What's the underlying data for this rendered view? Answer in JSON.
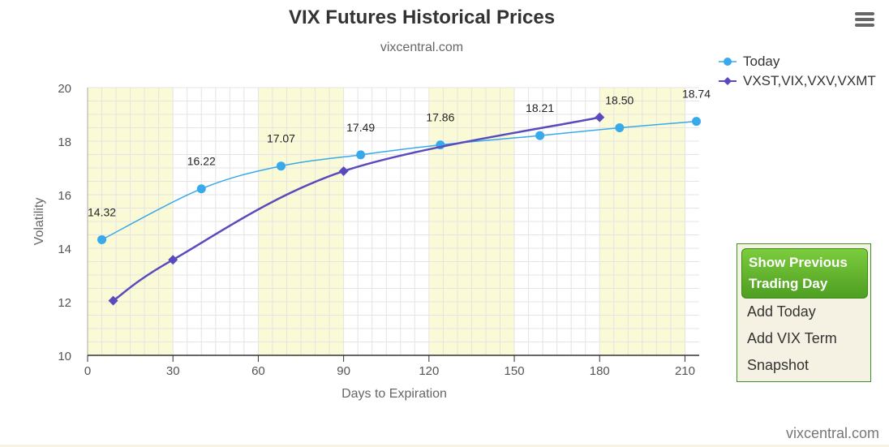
{
  "header": {
    "title": "VIX Futures Historical Prices",
    "subtitle": "vixcentral.com"
  },
  "icons": {
    "menu": "hamburger-menu-icon"
  },
  "colors": {
    "today": "#38a9eb",
    "term": "#5a4bbd",
    "band": "#fbfad6",
    "grid": "#e4e4e4",
    "button": "#5aab2a"
  },
  "chart_data": {
    "type": "line",
    "xlabel": "Days to Expiration",
    "ylabel": "Volatility",
    "xlim": [
      0,
      215
    ],
    "ylim": [
      10,
      20
    ],
    "xticks": [
      0,
      30,
      60,
      90,
      120,
      150,
      180,
      210
    ],
    "yticks": [
      10,
      12,
      14,
      16,
      18,
      20
    ],
    "xtick_labels": [
      "0",
      "30",
      "60",
      "90",
      "120",
      "150",
      "180",
      "210"
    ],
    "ytick_labels": [
      "10",
      "12",
      "14",
      "16",
      "18",
      "20"
    ],
    "shaded_bands": [
      [
        0,
        30
      ],
      [
        60,
        90
      ],
      [
        120,
        150
      ],
      [
        180,
        210
      ]
    ],
    "grid": true,
    "legend_position": "top-right",
    "series": [
      {
        "name": "Today",
        "marker": "circle",
        "x": [
          5,
          40,
          68,
          96,
          124,
          159,
          187,
          214
        ],
        "y": [
          14.32,
          16.22,
          17.07,
          17.49,
          17.86,
          18.21,
          18.5,
          18.74
        ],
        "labels": [
          "14.32",
          "16.22",
          "17.07",
          "17.49",
          "17.86",
          "18.21",
          "18.50",
          "18.74"
        ]
      },
      {
        "name": "VXST,VIX,VXV,VXMT",
        "marker": "diamond",
        "x": [
          9,
          30,
          90,
          180
        ],
        "y": [
          12.04,
          13.57,
          16.88,
          18.89
        ]
      }
    ]
  },
  "panel": {
    "show_previous": "Show Previous Trading Day",
    "add_today": "Add Today",
    "add_vix_term": "Add VIX Term",
    "snapshot": "Snapshot"
  },
  "footer": {
    "credit": "vixcentral.com"
  }
}
